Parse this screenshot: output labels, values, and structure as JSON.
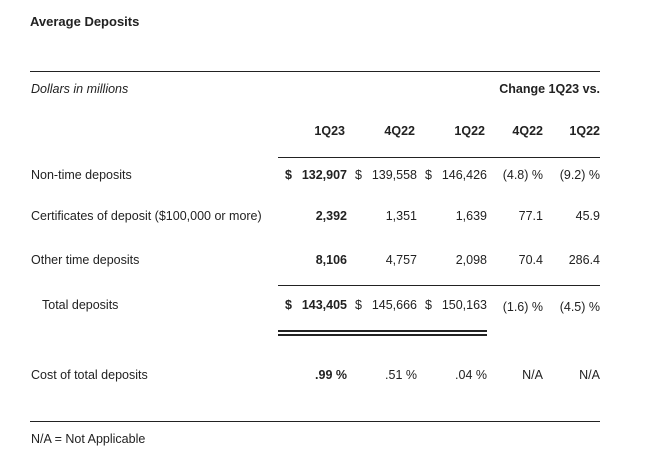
{
  "title": "Average Deposits",
  "units": "Dollars in millions",
  "change_header": "Change 1Q23 vs.",
  "columns": [
    "1Q23",
    "4Q22",
    "1Q22",
    "4Q22",
    "1Q22"
  ],
  "rows": [
    {
      "label": "Non-time deposits",
      "v": [
        "132,907",
        "139,558",
        "146,426",
        "(4.8) %",
        "(9.2) %"
      ],
      "dollar": true
    },
    {
      "label": "Certificates of deposit ($100,000 or more)",
      "v": [
        "2,392",
        "1,351",
        "1,639",
        "77.1",
        "45.9"
      ],
      "dollar": false
    },
    {
      "label": "Other time deposits",
      "v": [
        "8,106",
        "4,757",
        "2,098",
        "70.4",
        "286.4"
      ],
      "dollar": false
    },
    {
      "label": "Total deposits",
      "v": [
        "143,405",
        "145,666",
        "150,163",
        "(1.6) %",
        "(4.5) %"
      ],
      "dollar": true
    },
    {
      "label": "Cost of total deposits",
      "v": [
        ".99 %",
        ".51 %",
        ".04 %",
        "N/A",
        "N/A"
      ],
      "dollar": false
    }
  ],
  "dollar_sign": "$",
  "footnote": "N/A = Not Applicable"
}
